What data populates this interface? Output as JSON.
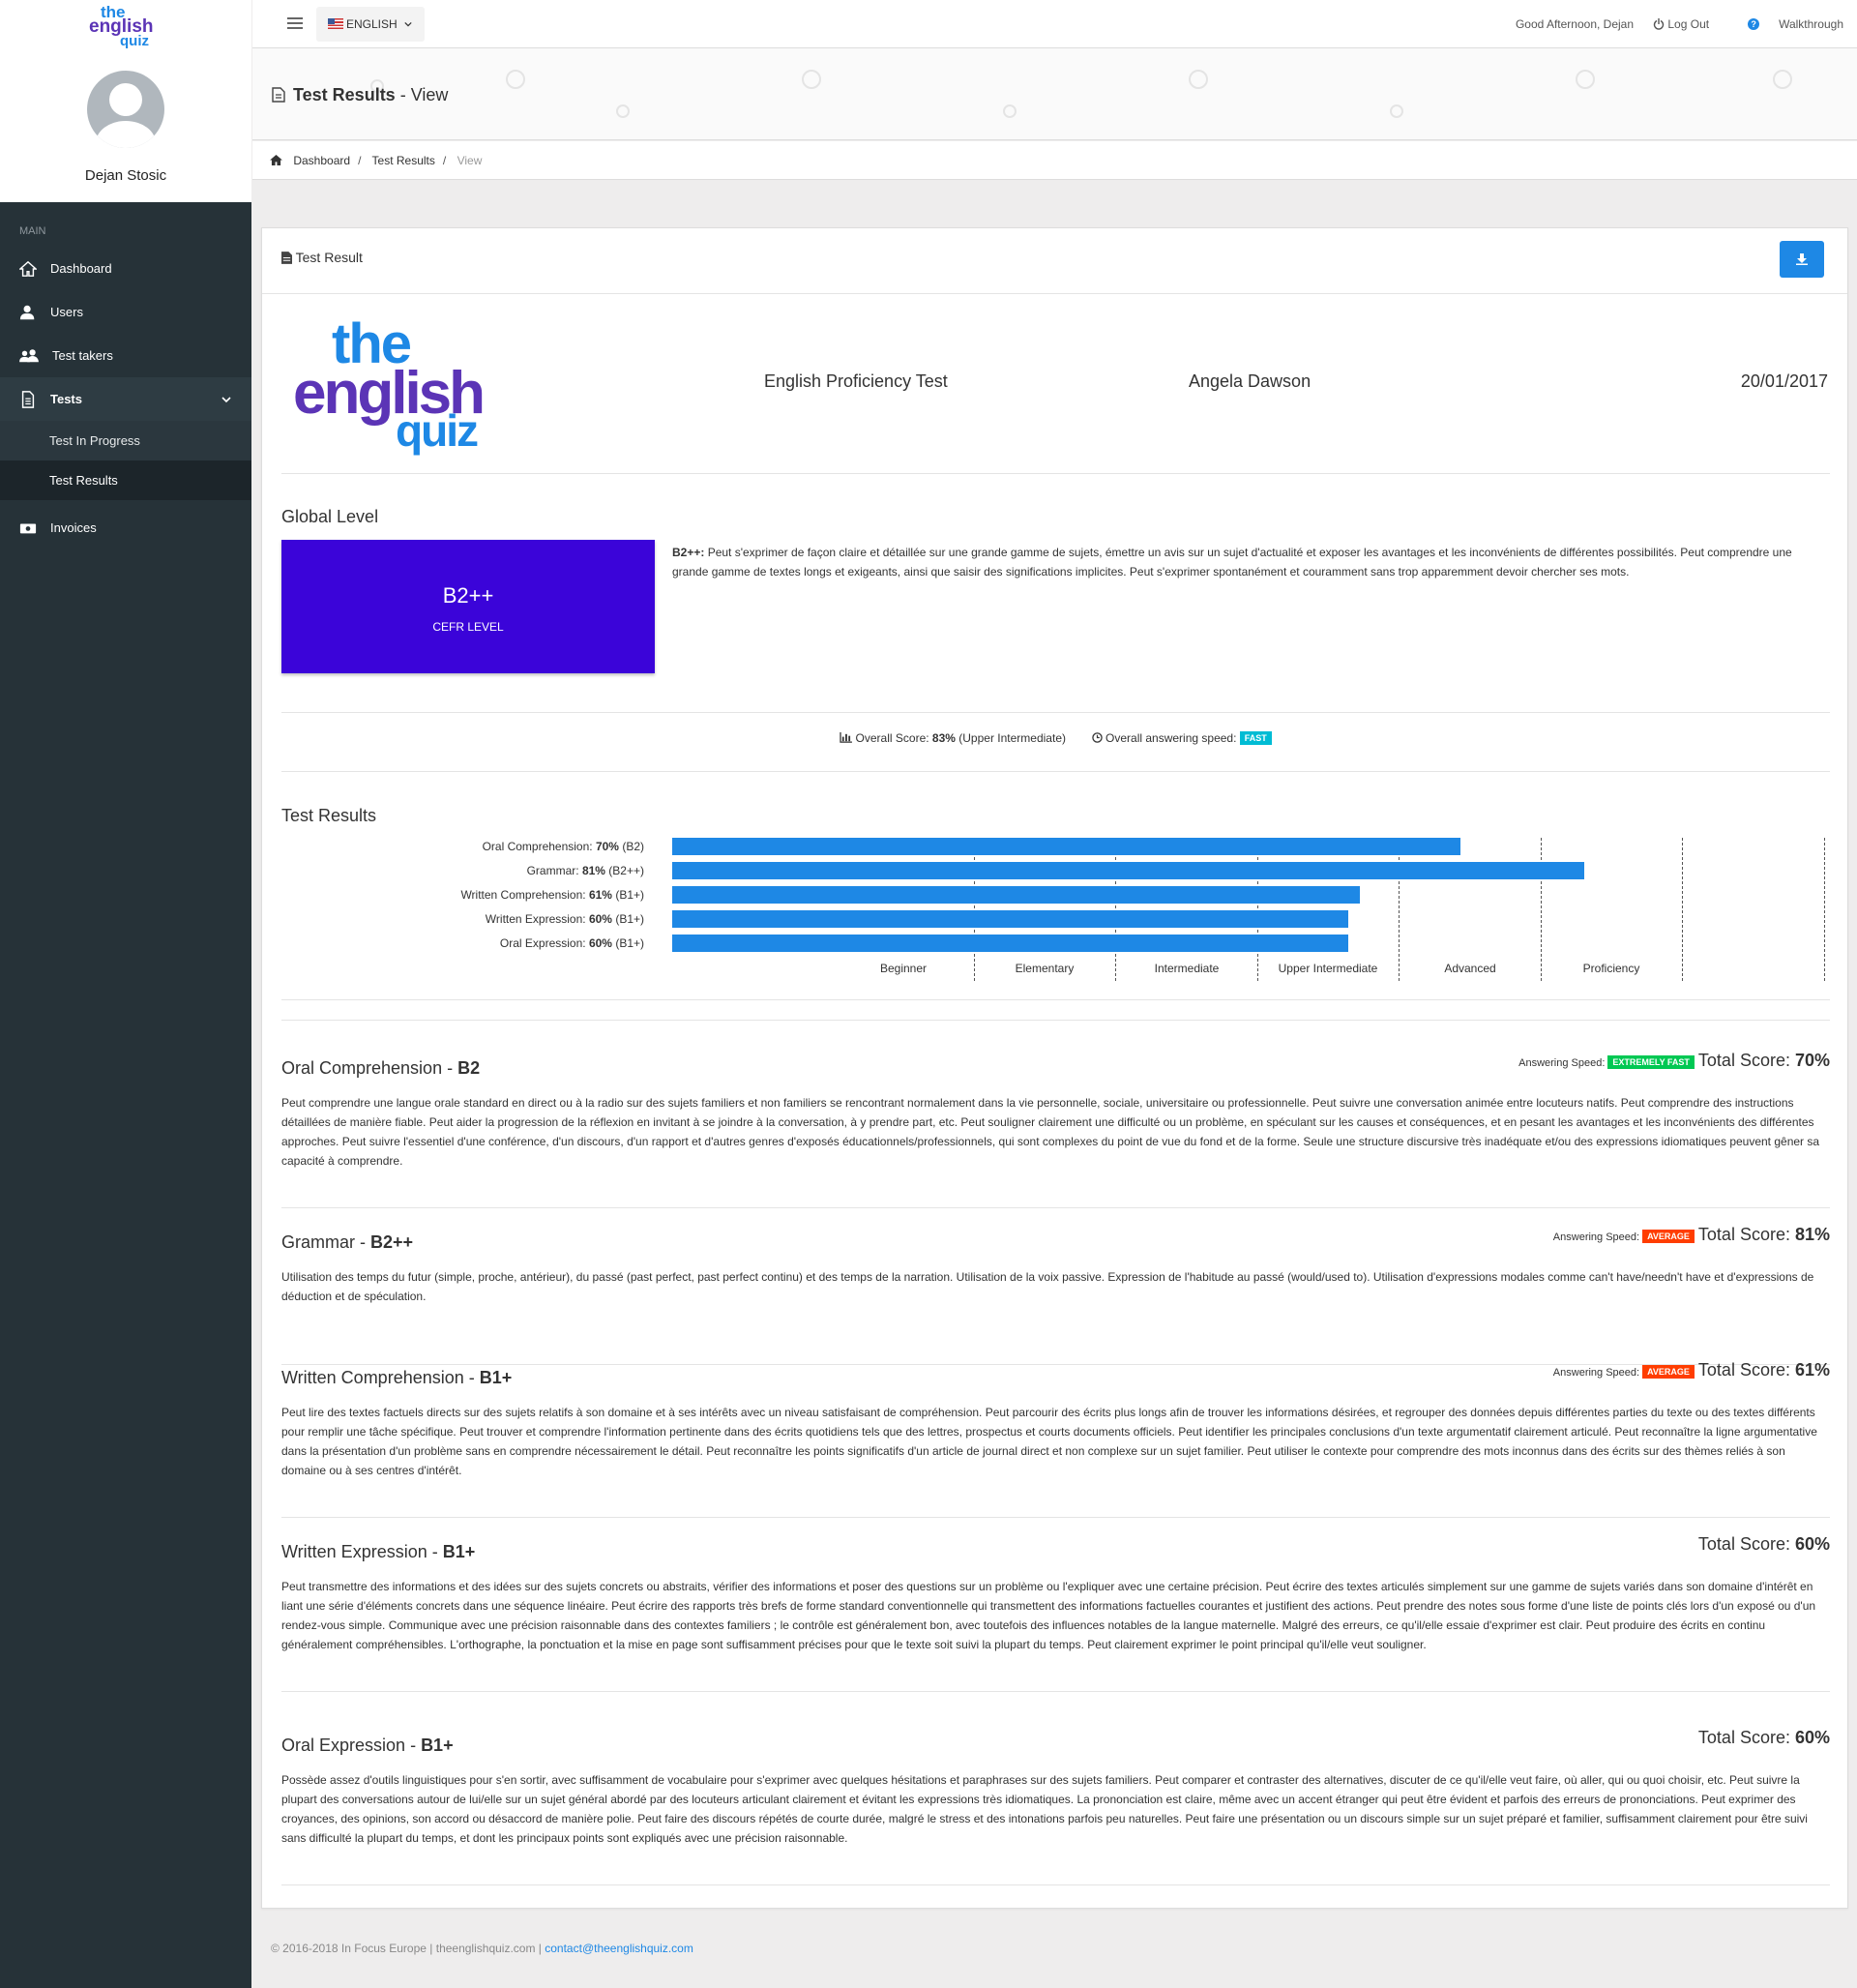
{
  "brand": {
    "logo_the": "the",
    "logo_english": "english",
    "logo_quiz": "quiz"
  },
  "user": {
    "name": "Dejan Stosic"
  },
  "sidebar": {
    "section": "MAIN",
    "items": [
      {
        "label": "Dashboard",
        "icon": "home-icon"
      },
      {
        "label": "Users",
        "icon": "user-icon"
      },
      {
        "label": "Test takers",
        "icon": "users-icon"
      },
      {
        "label": "Tests",
        "icon": "file-icon"
      },
      {
        "label": "Invoices",
        "icon": "money-icon"
      }
    ],
    "tests_sub": [
      "Test In Progress",
      "Test Results"
    ]
  },
  "topbar": {
    "language": "ENGLISH",
    "greeting": "Good Afternoon, Dejan",
    "logout": "Log Out",
    "walkthrough": "Walkthrough"
  },
  "page": {
    "title": "Test Results",
    "title_suffix": " - View"
  },
  "breadcrumb": [
    "Dashboard",
    "Test Results",
    "View"
  ],
  "card": {
    "title": "Test Result",
    "test_name": "English Proficiency Test",
    "candidate": "Angela Dawson",
    "date": "20/01/2017"
  },
  "global": {
    "heading": "Global Level",
    "level": "B2++",
    "level_label": "CEFR LEVEL",
    "desc_level": "B2++:",
    "desc": " Peut s'exprimer de façon claire et détaillée sur une grande gamme de sujets, émettre un avis sur un sujet d'actualité et exposer les avantages et les inconvénients de différentes possibilités. Peut comprendre une grande gamme de textes longs et exigeants, ainsi que saisir des significations implicites. Peut s'exprimer spontanément et couramment sans trop apparemment devoir chercher ses mots."
  },
  "overall": {
    "score_label": "Overall Score: ",
    "score_value": "83%",
    "score_desc": " (Upper Intermediate)",
    "speed_label": "Overall answering speed:",
    "speed_value": "FAST"
  },
  "results_heading": "Test Results",
  "chart_data": {
    "type": "bar",
    "orientation": "horizontal",
    "categories": [
      "Oral Comprehension",
      "Grammar",
      "Written Comprehension",
      "Written Expression",
      "Oral Expression"
    ],
    "values": [
      70,
      81,
      61,
      60,
      60
    ],
    "value_labels": [
      "70%",
      "81%",
      "61%",
      "60%",
      "60%"
    ],
    "levels": [
      "(B2)",
      "(B2++)",
      "(B1+)",
      "(B1+)",
      "(B1+)"
    ],
    "bands": [
      "Beginner",
      "Elementary",
      "Intermediate",
      "Upper Intermediate",
      "Advanced",
      "Proficiency"
    ],
    "xlim": [
      0,
      100
    ],
    "color": "#1e88e5"
  },
  "skills": [
    {
      "name": "Oral Comprehension",
      "level": "B2",
      "speed_label": "Answering Speed:",
      "speed": "EXTREMELY FAST",
      "speed_color": "#00c853",
      "score_label": "Total Score: ",
      "score": "70%",
      "text": "Peut comprendre une langue orale standard en direct ou à la radio sur des sujets familiers et non familiers se rencontrant normalement dans la vie personnelle, sociale, universitaire ou professionnelle. Peut suivre une conversation animée entre locuteurs natifs. Peut comprendre des instructions détaillées de manière fiable. Peut aider la progression de la réflexion en invitant à se joindre à la conversation, à y prendre part, etc. Peut souligner clairement une difficulté ou un problème, en spéculant sur les causes et conséquences, et en pesant les avantages et les inconvénients des différentes approches. Peut suivre l'essentiel d'une conférence, d'un discours, d'un rapport et d'autres genres d'exposés éducationnels/professionnels, qui sont complexes du point de vue du fond et de la forme. Seule une structure discursive très inadéquate et/ou des expressions idiomatiques peuvent gêner sa capacité à comprendre."
    },
    {
      "name": "Grammar",
      "level": "B2++",
      "speed_label": "Answering Speed:",
      "speed": "AVERAGE",
      "speed_color": "#ff3d00",
      "score_label": "Total Score: ",
      "score": "81%",
      "text": "Utilisation des temps du futur (simple, proche, antérieur), du passé (past perfect, past perfect continu) et des temps de la narration. Utilisation de la voix passive. Expression de l'habitude au passé (would/used to). Utilisation d'expressions modales comme can't have/needn't have et d'expressions de déduction et de spéculation."
    },
    {
      "name": "Written Comprehension",
      "level": "B1+",
      "speed_label": "Answering Speed:",
      "speed": "AVERAGE",
      "speed_color": "#ff3d00",
      "score_label": "Total Score: ",
      "score": "61%",
      "text": "Peut lire des textes factuels directs sur des sujets relatifs à son domaine et à ses intérêts avec un niveau satisfaisant de compréhension. Peut parcourir des écrits plus longs afin de trouver les informations désirées, et regrouper des données depuis différentes parties du texte ou des textes différents pour remplir une tâche spécifique. Peut trouver et comprendre l'information pertinente dans des écrits quotidiens tels que des lettres, prospectus et courts documents officiels. Peut identifier les principales conclusions d'un texte argumentatif clairement articulé. Peut reconnaître la ligne argumentative dans la présentation d'un problème sans en comprendre nécessairement le détail. Peut reconnaître les points significatifs d'un article de journal direct et non complexe sur un sujet familier. Peut utiliser le contexte pour comprendre des mots inconnus dans des écrits sur des thèmes reliés à son domaine ou à ses centres d'intérêt."
    },
    {
      "name": "Written Expression",
      "level": "B1+",
      "speed_label": "",
      "speed": "",
      "speed_color": "",
      "score_label": "Total Score: ",
      "score": "60%",
      "text": "Peut transmettre des informations et des idées sur des sujets concrets ou abstraits, vérifier des informations et poser des questions sur un problème ou l'expliquer avec une certaine précision. Peut écrire des textes articulés simplement sur une gamme de sujets variés dans son domaine d'intérêt en liant une série d'éléments concrets dans une séquence linéaire. Peut écrire des rapports très brefs de forme standard conventionnelle qui transmettent des informations factuelles courantes et justifient des actions. Peut prendre des notes sous forme d'une liste de points clés lors d'un exposé ou d'un rendez-vous simple. Communique avec une précision raisonnable dans des contextes familiers ; le contrôle est généralement bon, avec toutefois des influences notables de la langue maternelle. Malgré des erreurs, ce qu'il/elle essaie d'exprimer est clair. Peut produire des écrits en continu généralement compréhensibles. L'orthographe, la ponctuation et la mise en page sont suffisamment précises pour que le texte soit suivi la plupart du temps. Peut clairement exprimer le point principal qu'il/elle veut souligner."
    },
    {
      "name": "Oral Expression",
      "level": "B1+",
      "speed_label": "",
      "speed": "",
      "speed_color": "",
      "score_label": "Total Score: ",
      "score": "60%",
      "text": "Possède assez d'outils linguistiques pour s'en sortir, avec suffisamment de vocabulaire pour s'exprimer avec quelques hésitations et paraphrases sur des sujets familiers. Peut comparer et contraster des alternatives, discuter de ce qu'il/elle veut faire, où aller, qui ou quoi choisir, etc. Peut suivre la plupart des conversations autour de lui/elle sur un sujet général abordé par des locuteurs articulant clairement et évitant les expressions très idiomatiques. La prononciation est claire, même avec un accent étranger qui peut être évident et parfois des erreurs de prononciations. Peut exprimer des croyances, des opinions, son accord ou désaccord de manière polie. Peut faire des discours répétés de courte durée, malgré le stress et des intonations parfois peu naturelles. Peut faire une présentation ou un discours simple sur un sujet préparé et familier, suffisamment clairement pour être suivi sans difficulté la plupart du temps, et dont les principaux points sont expliqués avec une précision raisonnable."
    }
  ],
  "footer": {
    "copy": "© 2016-2018 In Focus Europe | theenglishquiz.com | ",
    "email": "contact@theenglishquiz.com"
  }
}
